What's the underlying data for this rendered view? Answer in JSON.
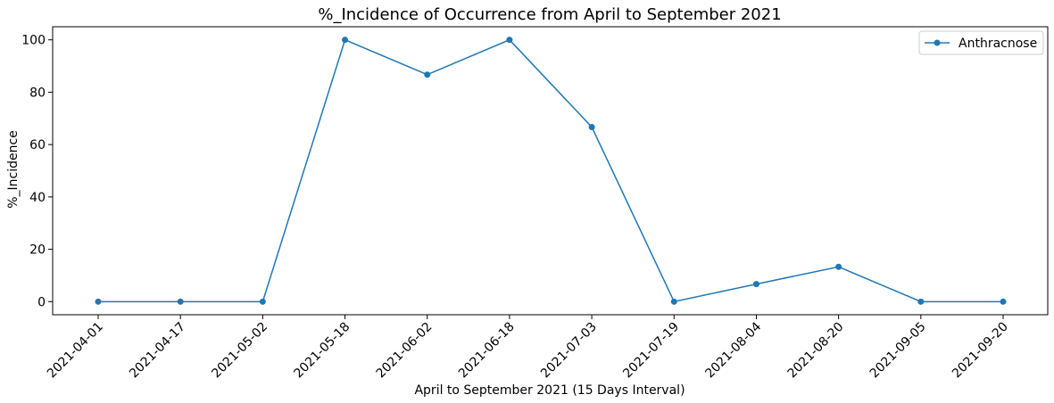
{
  "chart_data": {
    "type": "line",
    "title": "%_Incidence of Occurrence from April to September 2021",
    "xlabel": "April to September 2021 (15 Days Interval)",
    "ylabel": "%_Incidence",
    "categories": [
      "2021-04-01",
      "2021-04-17",
      "2021-05-02",
      "2021-05-18",
      "2021-06-02",
      "2021-06-18",
      "2021-07-03",
      "2021-07-19",
      "2021-08-04",
      "2021-08-20",
      "2021-09-05",
      "2021-09-20"
    ],
    "series": [
      {
        "name": "Anthracnose",
        "color": "#1f77b4",
        "values": [
          0,
          0,
          0,
          100,
          86.7,
          100,
          66.7,
          0,
          6.7,
          13.3,
          0,
          0
        ]
      }
    ],
    "ylim": [
      -5,
      105
    ],
    "yticks": [
      0,
      20,
      40,
      60,
      80,
      100
    ],
    "grid": false,
    "legend_position": "top-right"
  }
}
